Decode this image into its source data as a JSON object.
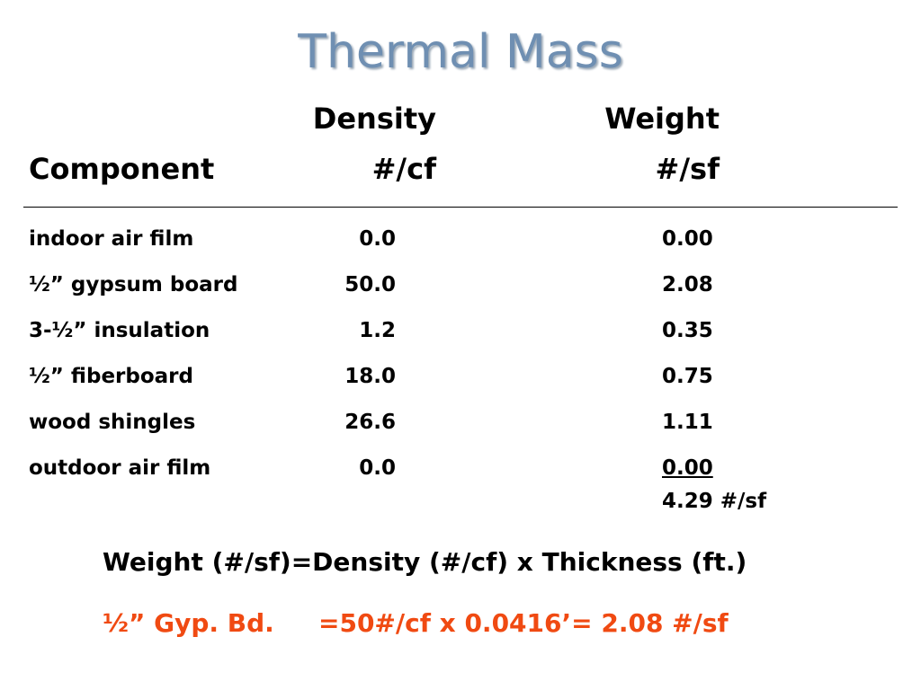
{
  "title": "Thermal Mass",
  "header": {
    "density_label": "Density",
    "weight_label": "Weight",
    "component_label": "Component",
    "density_unit": "#/cf",
    "weight_unit": "#/sf"
  },
  "rows": [
    {
      "component": "indoor air film",
      "density": "0.0",
      "weight": "0.00"
    },
    {
      "component": "½” gypsum board",
      "density": "50.0",
      "weight": "2.08"
    },
    {
      "component": "3-½” insulation",
      "density": "1.2",
      "weight": "0.35"
    },
    {
      "component": "½” fiberboard",
      "density": "18.0",
      "weight": "0.75"
    },
    {
      "component": "wood shingles",
      "density": "26.6",
      "weight": "1.11"
    },
    {
      "component": "outdoor air film",
      "density": "0.0",
      "weight": "0.00"
    }
  ],
  "total": "4.29 #/sf",
  "formula": "Weight (#/sf)=Density (#/cf) x Thickness (ft.)",
  "example": {
    "label": "½” Gyp. Bd.",
    "calculation": "=50#/cf x 0.0416’= 2.08 #/sf"
  },
  "colors": {
    "title": "#6f8fb2",
    "example": "#f04a12",
    "text": "#000000"
  }
}
